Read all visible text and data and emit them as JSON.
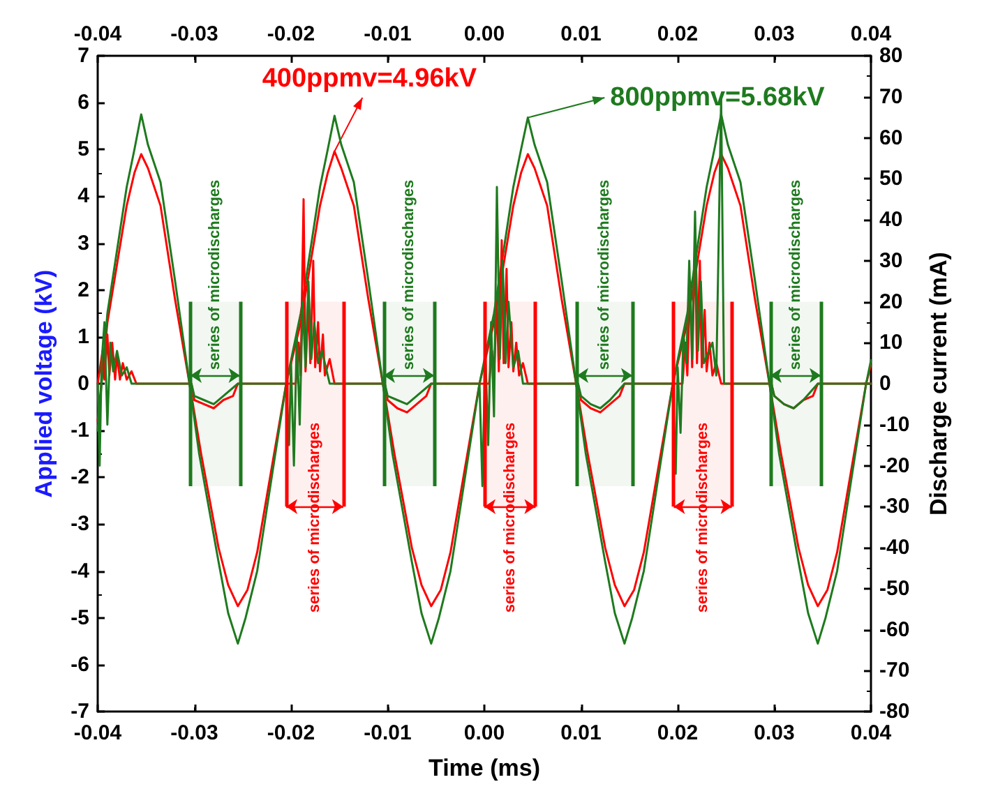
{
  "chart_data": {
    "type": "line",
    "xlabel": "Time (ms)",
    "ylabel": "Applied voltage (kV)",
    "y2label": "Discharge current (mA)",
    "xlim": [
      -0.04,
      0.04
    ],
    "xticks": [
      -0.04,
      -0.03,
      -0.02,
      -0.01,
      {
        "value": 0,
        "label": "0.00"
      },
      0.01,
      0.02,
      0.03,
      0.04
    ],
    "x2lim": [
      -0.04,
      0.04
    ],
    "x2ticks": [
      -0.04,
      -0.03,
      -0.02,
      -0.01,
      {
        "value": 0,
        "label": "0.00"
      },
      0.01,
      0.02,
      0.03,
      0.04
    ],
    "ylim": [
      -7,
      7
    ],
    "yticks": [
      -7,
      -6,
      -5,
      -4,
      -3,
      -2,
      -1,
      0,
      1,
      2,
      3,
      4,
      5,
      6,
      7
    ],
    "y2lim": [
      -80,
      80
    ],
    "y2ticks": [
      -80,
      -70,
      -60,
      -50,
      -40,
      -30,
      -20,
      -10,
      0,
      10,
      20,
      30,
      40,
      50,
      60,
      70,
      80
    ],
    "grid": false,
    "marker": "none",
    "line_style": "solid",
    "series": [
      {
        "color": "#ff0000",
        "x": [
          -0.04,
          -0.039,
          -0.037,
          -0.0362,
          -0.0355,
          -0.0348,
          -0.0335,
          -0.032,
          -0.0305,
          -0.0293,
          -0.0275,
          -0.0265,
          -0.0255,
          -0.0245,
          -0.0235,
          -0.022,
          -0.0205,
          -0.019,
          -0.017,
          -0.0162,
          -0.0155,
          -0.0148,
          -0.0135,
          -0.012,
          -0.0105,
          -0.0093,
          -0.0075,
          -0.0065,
          -0.0055,
          -0.0045,
          -0.0035,
          -0.002,
          -0.0005,
          0.001,
          0.003,
          0.0038,
          0.0045,
          0.0052,
          0.0065,
          0.008,
          0.0095,
          0.0107,
          0.0125,
          0.0135,
          0.0145,
          0.0155,
          0.0165,
          0.018,
          0.0195,
          0.021,
          0.023,
          0.0238,
          0.0245,
          0.0252,
          0.0265,
          0.028,
          0.0295,
          0.0307,
          0.0325,
          0.0335,
          0.0345,
          0.0355,
          0.0365,
          0.038,
          0.0395,
          0.04
        ],
        "values": [
          -0.8,
          1.3,
          3.8,
          4.5,
          4.9,
          4.6,
          3.8,
          1.8,
          0,
          -1.5,
          -3.5,
          -4.3,
          -4.75,
          -4.4,
          -3.6,
          -1.8,
          0,
          1.3,
          3.8,
          4.5,
          4.96,
          4.6,
          3.8,
          1.8,
          0,
          -1.5,
          -3.5,
          -4.3,
          -4.75,
          -4.4,
          -3.6,
          -1.8,
          0,
          1.3,
          3.8,
          4.5,
          4.9,
          4.6,
          3.8,
          1.8,
          0,
          -1.5,
          -3.5,
          -4.3,
          -4.75,
          -4.4,
          -3.6,
          -1.8,
          0,
          1.3,
          3.8,
          4.5,
          4.9,
          4.6,
          3.8,
          1.8,
          0,
          -1.5,
          -3.5,
          -4.3,
          -4.75,
          -4.4,
          -3.6,
          -1.8,
          0,
          0.4
        ]
      },
      {
        "color": "#1e7a1e",
        "x": [
          -0.04,
          -0.039,
          -0.037,
          -0.0362,
          -0.0355,
          -0.0348,
          -0.0335,
          -0.032,
          -0.0305,
          -0.0295,
          -0.0275,
          -0.0265,
          -0.0255,
          -0.0247,
          -0.0235,
          -0.022,
          -0.0205,
          -0.019,
          -0.017,
          -0.0162,
          -0.0155,
          -0.0148,
          -0.0135,
          -0.012,
          -0.0105,
          -0.0095,
          -0.0075,
          -0.0065,
          -0.0055,
          -0.0047,
          -0.0035,
          -0.002,
          -0.0005,
          0.001,
          0.003,
          0.0038,
          0.0045,
          0.0052,
          0.0065,
          0.008,
          0.0095,
          0.0105,
          0.0125,
          0.0135,
          0.0145,
          0.0153,
          0.0165,
          0.018,
          0.0195,
          0.021,
          0.023,
          0.0238,
          0.0245,
          0.0252,
          0.0265,
          0.028,
          0.0295,
          0.0305,
          0.0325,
          0.0335,
          0.0345,
          0.0353,
          0.0365,
          0.038,
          0.0395,
          0.04
        ],
        "values": [
          -1.0,
          1.5,
          4.2,
          5.0,
          5.75,
          5.1,
          4.3,
          2.2,
          0,
          -1.5,
          -3.8,
          -4.9,
          -5.55,
          -5.0,
          -4.0,
          -2.0,
          0,
          1.5,
          4.2,
          5.0,
          5.72,
          5.1,
          4.3,
          2.2,
          0,
          -1.5,
          -3.8,
          -4.9,
          -5.55,
          -5.0,
          -4.0,
          -2.0,
          0,
          1.5,
          4.2,
          5.0,
          5.68,
          5.1,
          4.3,
          2.2,
          0,
          -1.5,
          -3.8,
          -4.9,
          -5.55,
          -5.0,
          -4.0,
          -2.0,
          0,
          1.5,
          4.2,
          5.0,
          5.75,
          5.1,
          4.3,
          2.2,
          0,
          -1.5,
          -3.8,
          -4.9,
          -5.55,
          -5.0,
          -4.0,
          -2.0,
          0,
          0.5
        ]
      },
      {
        "color": "#ff0000",
        "axis": "y2",
        "x": [
          -0.04,
          -0.0395,
          -0.0393,
          -0.039,
          -0.0388,
          -0.0385,
          -0.0382,
          -0.038,
          -0.0377,
          -0.0374,
          -0.037,
          -0.0365,
          -0.036,
          -0.0303,
          -0.03,
          -0.029,
          -0.028,
          -0.027,
          -0.026,
          -0.0255,
          -0.0195,
          -0.0192,
          -0.019,
          -0.0187,
          -0.0185,
          -0.0182,
          -0.018,
          -0.0177,
          -0.0175,
          -0.0172,
          -0.017,
          -0.0167,
          -0.0165,
          -0.016,
          -0.0155,
          -0.0103,
          -0.01,
          -0.009,
          -0.008,
          -0.007,
          -0.006,
          -0.0055,
          0.0005,
          0.0008,
          0.001,
          0.0013,
          0.0015,
          0.0018,
          0.002,
          0.0023,
          0.0025,
          0.0028,
          0.003,
          0.0033,
          0.0036,
          0.004,
          0.0045,
          0.0097,
          0.01,
          0.011,
          0.012,
          0.013,
          0.014,
          0.0145,
          0.0205,
          0.0208,
          0.021,
          0.0213,
          0.0215,
          0.0218,
          0.022,
          0.0223,
          0.0225,
          0.0228,
          0.023,
          0.0233,
          0.0236,
          0.024,
          0.0245,
          0.0297,
          0.03,
          0.031,
          0.032,
          0.033,
          0.034,
          0.0345,
          0.04
        ],
        "values": [
          0,
          8,
          1,
          12,
          2,
          10,
          1,
          7,
          1,
          5,
          1,
          3,
          0,
          0,
          -4,
          -5,
          -6,
          -4,
          -3,
          0,
          0,
          10,
          2,
          45,
          3,
          20,
          5,
          30,
          4,
          15,
          3,
          12,
          2,
          6,
          0,
          0,
          -4,
          -6,
          -7,
          -5,
          -3,
          0,
          0,
          8,
          2,
          20,
          3,
          35,
          5,
          28,
          4,
          15,
          3,
          10,
          2,
          5,
          0,
          0,
          -4,
          -6,
          -7,
          -5,
          -3,
          0,
          0,
          10,
          2,
          25,
          4,
          35,
          5,
          30,
          4,
          18,
          3,
          10,
          2,
          5,
          0,
          0,
          -3,
          -5,
          -6,
          -4,
          -3,
          0,
          0
        ]
      },
      {
        "color": "#1e7a1e",
        "axis": "y2",
        "x": [
          -0.04,
          -0.0398,
          -0.0396,
          -0.0393,
          -0.039,
          -0.0387,
          -0.0384,
          -0.038,
          -0.0375,
          -0.037,
          -0.0365,
          -0.0303,
          -0.03,
          -0.029,
          -0.028,
          -0.027,
          -0.0255,
          -0.0205,
          -0.0202,
          -0.02,
          -0.0197,
          -0.0194,
          -0.0191,
          -0.0188,
          -0.0185,
          -0.0182,
          -0.0179,
          -0.0176,
          -0.0172,
          -0.0168,
          -0.016,
          -0.0103,
          -0.01,
          -0.009,
          -0.008,
          -0.007,
          -0.0055,
          -0.0005,
          -0.0002,
          0.0001,
          0.0004,
          0.0007,
          0.001,
          0.0013,
          0.0016,
          0.0019,
          0.0022,
          0.0025,
          0.003,
          0.0035,
          0.004,
          0.0097,
          0.01,
          0.011,
          0.012,
          0.013,
          0.0145,
          0.0195,
          0.0198,
          0.02,
          0.0203,
          0.0206,
          0.0209,
          0.0212,
          0.0215,
          0.0218,
          0.0221,
          0.0224,
          0.0227,
          0.0236,
          0.024,
          0.0245,
          0.02455,
          0.0248,
          0.0297,
          0.03,
          0.031,
          0.032,
          0.033,
          0.0345,
          0.04
        ],
        "values": [
          0,
          -20,
          5,
          15,
          -10,
          10,
          3,
          8,
          2,
          4,
          0,
          0,
          -3,
          -4,
          -5,
          -3,
          0,
          0,
          -15,
          5,
          -20,
          12,
          -10,
          20,
          4,
          25,
          6,
          15,
          5,
          8,
          0,
          0,
          -3,
          -4,
          -5,
          -3,
          0,
          0,
          -25,
          8,
          -15,
          15,
          -8,
          48,
          6,
          30,
          5,
          20,
          4,
          8,
          0,
          0,
          -3,
          -5,
          -6,
          -4,
          0,
          0,
          -22,
          4,
          -12,
          12,
          5,
          30,
          6,
          42,
          8,
          25,
          5,
          10,
          2,
          70,
          70,
          0,
          0,
          -3,
          -5,
          -6,
          -4,
          0,
          0
        ]
      }
    ],
    "bands": [
      {
        "axis": "x",
        "from": -0.0304,
        "to": -0.0253,
        "label": "series of microdischarges",
        "color": "#1e7a1e"
      },
      {
        "axis": "x",
        "from": -0.0205,
        "to": -0.0146,
        "label": "series of microdischarges",
        "color": "#ff0000"
      },
      {
        "axis": "x",
        "from": -0.0104,
        "to": -0.0052,
        "label": "series of microdischarges",
        "color": "#1e7a1e"
      },
      {
        "axis": "x",
        "from": 0,
        "to": 0.0053,
        "label": "series of microdischarges",
        "color": "#ff0000"
      },
      {
        "axis": "x",
        "from": 0.0096,
        "to": 0.0153,
        "label": "series of microdischarges",
        "color": "#1e7a1e"
      },
      {
        "axis": "x",
        "from": 0.0196,
        "to": 0.0256,
        "label": "series of microdischarges",
        "color": "#ff0000"
      },
      {
        "axis": "x",
        "from": 0.0296,
        "to": 0.0348,
        "label": "series of microdischarges",
        "color": "#1e7a1e"
      }
    ],
    "annotations": [
      {
        "text": "400ppmv=4.96kV",
        "x": -0.0155,
        "y": 4.96
      },
      {
        "text": "800ppmv=5.68kV",
        "x": 0.0045,
        "y": 5.68
      }
    ]
  }
}
